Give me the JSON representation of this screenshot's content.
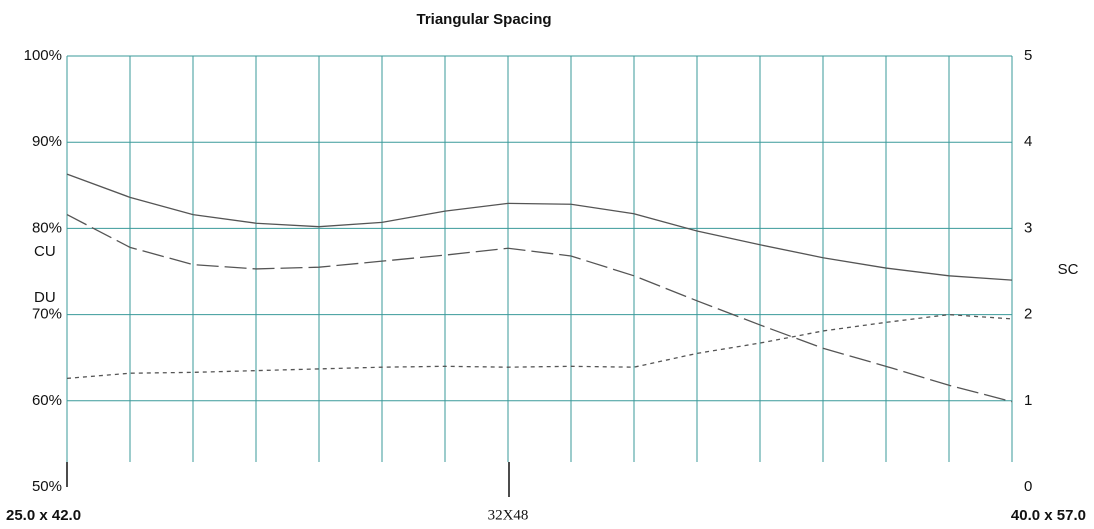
{
  "chart_data": {
    "type": "line",
    "title": "Triangular Spacing",
    "y2label": "SC",
    "categories": [
      "25.0 x 42.0",
      null,
      null,
      null,
      null,
      null,
      null,
      "32X48",
      null,
      null,
      null,
      null,
      null,
      null,
      null,
      "40.0 x 57.0"
    ],
    "series": [
      {
        "name": "CU",
        "color": "#555555",
        "dash": "solid",
        "values": [
          86.3,
          83.6,
          81.6,
          80.6,
          80.2,
          80.7,
          82.0,
          82.9,
          82.8,
          81.7,
          79.7,
          78.1,
          76.6,
          75.4,
          74.5,
          74.0
        ]
      },
      {
        "name": "DU",
        "color": "#555555",
        "dash": "long",
        "values": [
          81.6,
          77.8,
          75.8,
          75.3,
          75.5,
          76.2,
          76.9,
          77.7,
          76.8,
          74.5,
          71.6,
          68.8,
          66.1,
          64.0,
          61.8,
          59.9
        ]
      },
      {
        "name": "SC",
        "color": "#555555",
        "dash": "short",
        "axis": "y2",
        "values": [
          1.26,
          1.32,
          1.33,
          1.35,
          1.37,
          1.39,
          1.4,
          1.39,
          1.4,
          1.39,
          1.55,
          1.67,
          1.81,
          1.91,
          2.0,
          1.95
        ]
      }
    ],
    "ylim": [
      50,
      100
    ],
    "yticks": [
      {
        "value": 50,
        "label": "50%"
      },
      {
        "value": 60,
        "label": "60%"
      },
      {
        "value": 70,
        "label": "70%"
      },
      {
        "value": 80,
        "label": "80%"
      },
      {
        "value": 90,
        "label": "90%"
      },
      {
        "value": 100,
        "label": "100%"
      }
    ],
    "y2lim": [
      0,
      5
    ],
    "y2ticks": [
      0,
      1,
      2,
      3,
      4,
      5
    ],
    "grid": true
  }
}
